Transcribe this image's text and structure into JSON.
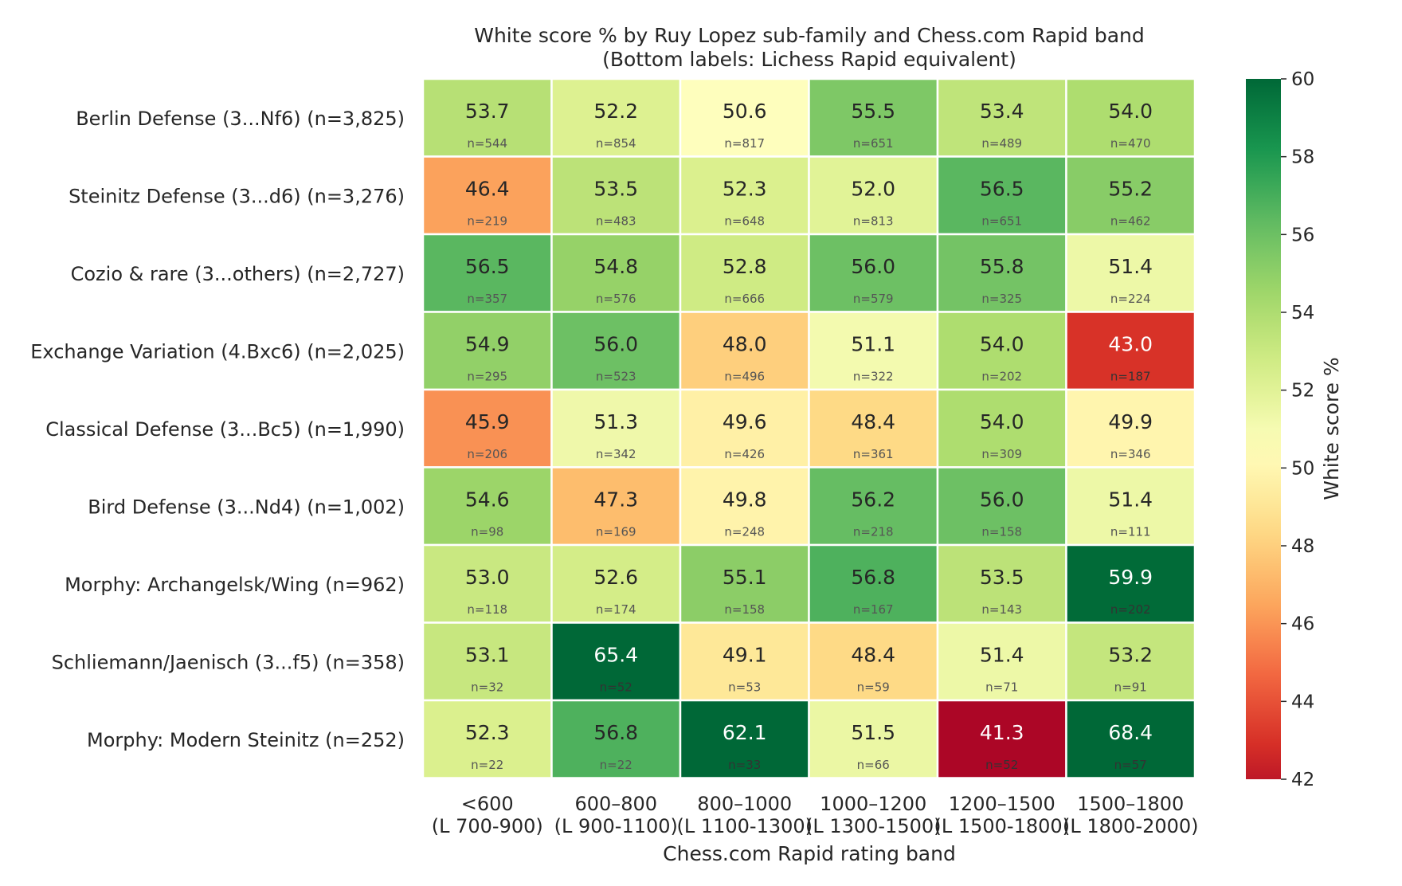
{
  "chart_data": {
    "type": "heatmap",
    "title": "White score % by Ruy Lopez sub-family and Chess.com Rapid band",
    "subtitle": "(Bottom labels: Lichess Rapid equivalent)",
    "xlabel": "Chess.com Rapid rating band",
    "colorbar_label": "White score %",
    "colorbar_range": [
      42,
      60
    ],
    "colorbar_ticks": [
      "42",
      "44",
      "46",
      "48",
      "50",
      "52",
      "54",
      "56",
      "58",
      "60"
    ],
    "colormap": "RdYlGn",
    "columns": [
      {
        "line1": "<600",
        "line2": "(L 700-900)"
      },
      {
        "line1": "600–800",
        "line2": "(L 900-1100)"
      },
      {
        "line1": "800–1000",
        "line2": "(L 1100-1300)"
      },
      {
        "line1": "1000–1200",
        "line2": "(L 1300-1500)"
      },
      {
        "line1": "1200–1500",
        "line2": "(L 1500-1800)"
      },
      {
        "line1": "1500–1800",
        "line2": "(L 1800-2000)"
      }
    ],
    "rows": [
      "Berlin Defense (3...Nf6) (n=3,825)",
      "Steinitz Defense (3...d6) (n=3,276)",
      "Cozio & rare (3...others) (n=2,727)",
      "Exchange Variation (4.Bxc6) (n=2,025)",
      "Classical Defense (3...Bc5) (n=1,990)",
      "Bird Defense (3...Nd4) (n=1,002)",
      "Morphy: Archangelsk/Wing (n=962)",
      "Schliemann/Jaenisch (3...f5) (n=358)",
      "Morphy: Modern Steinitz (n=252)"
    ],
    "values": [
      [
        "53.7",
        "52.2",
        "50.6",
        "55.5",
        "53.4",
        "54.0"
      ],
      [
        "46.4",
        "53.5",
        "52.3",
        "52.0",
        "56.5",
        "55.2"
      ],
      [
        "56.5",
        "54.8",
        "52.8",
        "56.0",
        "55.8",
        "51.4"
      ],
      [
        "54.9",
        "56.0",
        "48.0",
        "51.1",
        "54.0",
        "43.0"
      ],
      [
        "45.9",
        "51.3",
        "49.6",
        "48.4",
        "54.0",
        "49.9"
      ],
      [
        "54.6",
        "47.3",
        "49.8",
        "56.2",
        "56.0",
        "51.4"
      ],
      [
        "53.0",
        "52.6",
        "55.1",
        "56.8",
        "53.5",
        "59.9"
      ],
      [
        "53.1",
        "65.4",
        "49.1",
        "48.4",
        "51.4",
        "53.2"
      ],
      [
        "52.3",
        "56.8",
        "62.1",
        "51.5",
        "41.3",
        "68.4"
      ]
    ],
    "counts": [
      [
        "n=544",
        "n=854",
        "n=817",
        "n=651",
        "n=489",
        "n=470"
      ],
      [
        "n=219",
        "n=483",
        "n=648",
        "n=813",
        "n=651",
        "n=462"
      ],
      [
        "n=357",
        "n=576",
        "n=666",
        "n=579",
        "n=325",
        "n=224"
      ],
      [
        "n=295",
        "n=523",
        "n=496",
        "n=322",
        "n=202",
        "n=187"
      ],
      [
        "n=206",
        "n=342",
        "n=426",
        "n=361",
        "n=309",
        "n=346"
      ],
      [
        "n=98",
        "n=169",
        "n=248",
        "n=218",
        "n=158",
        "n=111"
      ],
      [
        "n=118",
        "n=174",
        "n=158",
        "n=167",
        "n=143",
        "n=202"
      ],
      [
        "n=32",
        "n=52",
        "n=53",
        "n=59",
        "n=71",
        "n=91"
      ],
      [
        "n=22",
        "n=22",
        "n=33",
        "n=66",
        "n=52",
        "n=57"
      ]
    ]
  }
}
